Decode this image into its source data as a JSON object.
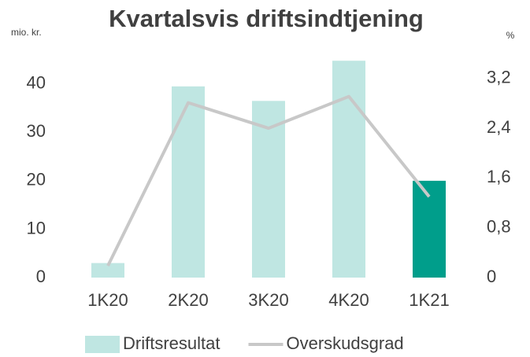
{
  "chart_data": {
    "type": "bar_line",
    "title": "Kvartalsvis driftsindtjening",
    "y_label": "mio. kr.",
    "y2_label": "%",
    "categories": [
      "1K20",
      "2K20",
      "3K20",
      "4K20",
      "1K21"
    ],
    "series": [
      {
        "name": "Driftsresultat",
        "type": "bar",
        "color": "#bfe6e2",
        "colors": [
          "#bfe6e2",
          "#bfe6e2",
          "#bfe6e2",
          "#bfe6e2",
          "#009e8b"
        ],
        "values": [
          3,
          39.5,
          36.5,
          44.8,
          20
        ]
      },
      {
        "name": "Overskudsgrad",
        "type": "line",
        "axis": "y2",
        "color": "#c8c8c8",
        "values": [
          0.19,
          2.81,
          2.4,
          2.91,
          1.3
        ]
      }
    ],
    "ylim": [
      0,
      45
    ],
    "yticks": [
      0,
      10,
      20,
      30,
      40
    ],
    "y2lim": [
      0,
      3.5
    ],
    "y2ticks": [
      0,
      {
        "value": 0.8,
        "label": "0,8"
      },
      {
        "value": 1.6,
        "label": "1,6"
      },
      {
        "value": 2.4,
        "label": "2,4"
      },
      {
        "value": 3.2,
        "label": "3,2"
      }
    ],
    "legend": "bottom"
  }
}
